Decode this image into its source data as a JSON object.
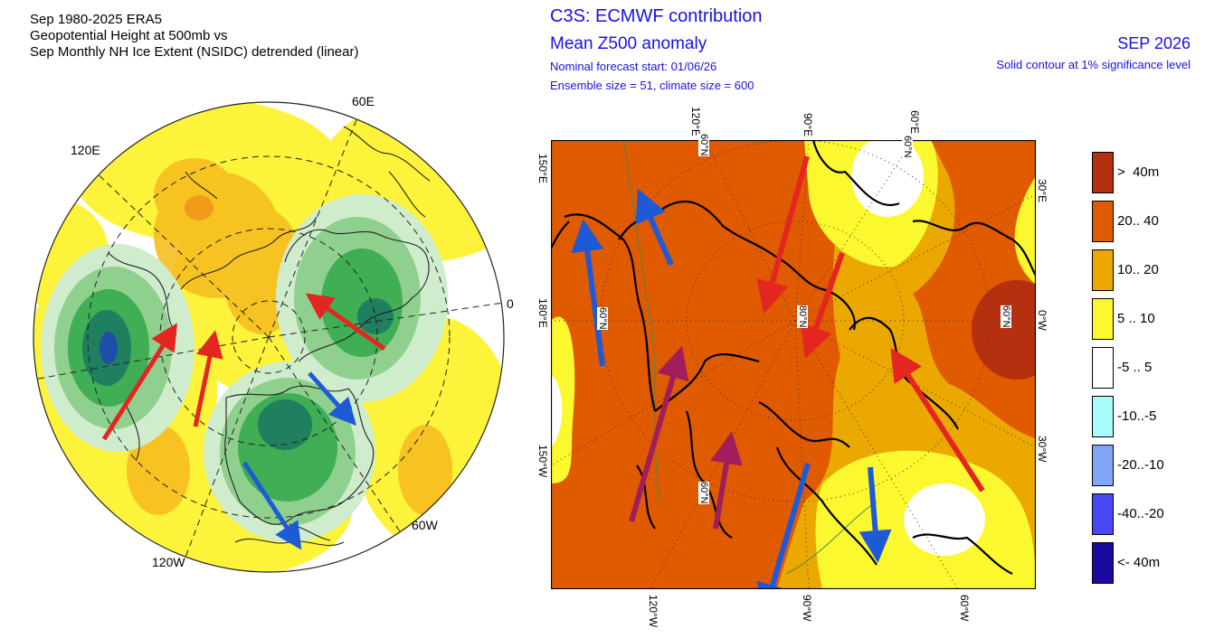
{
  "left_panel": {
    "title_lines": [
      "Sep 1980-2025 ERA5",
      "Geopotential Height at 500mb vs",
      "Sep Monthly NH Ice Extent (NSIDC) detrended (linear)"
    ],
    "lon_labels": {
      "e60": "60E",
      "e120": "120E",
      "zero": "0",
      "w60": "60W",
      "w120": "120W"
    }
  },
  "right_panel": {
    "title": "C3S: ECMWF contribution",
    "subtitle": "Mean Z500 anomaly",
    "forecast_start": "Nominal forecast start: 01/06/26",
    "ensemble": "Ensemble size = 51, climate size = 600",
    "month": "SEP 2026",
    "contour_note": "Solid contour at 1% significance level",
    "top_labels": [
      "120°E",
      "90°E",
      "60°E"
    ],
    "bottom_labels": [
      "120°W",
      "90°W",
      "60°W"
    ],
    "left_labels": [
      "150°E",
      "180°E",
      "150°W"
    ],
    "right_labels": [
      "30°E",
      "0°W",
      "30°W"
    ],
    "lat_labels": [
      "60°N",
      "60°N",
      "60°N",
      "80°N",
      "60°N",
      "60°N"
    ]
  },
  "legend": {
    "items": [
      {
        "label": ">  40m",
        "color": "#b5300f"
      },
      {
        "label": "20.. 40",
        "color": "#e05a00"
      },
      {
        "label": "10.. 20",
        "color": "#eba800"
      },
      {
        "label": "5 .. 10",
        "color": "#fbf82f"
      },
      {
        "label": "-5 .. 5",
        "color": "#ffffff"
      },
      {
        "label": "-10..-5",
        "color": "#a8fcfc"
      },
      {
        "label": "-20..-10",
        "color": "#7fa6f8"
      },
      {
        "label": "-40..-20",
        "color": "#4848f8"
      },
      {
        "label": "<- 40m",
        "color": "#1a0aa0"
      }
    ]
  },
  "colors": {
    "red_arrow": "#e42620",
    "blue_arrow": "#1f5ad6",
    "maroon_arrow": "#a01e5c",
    "title_blue": "#1a10e6"
  }
}
